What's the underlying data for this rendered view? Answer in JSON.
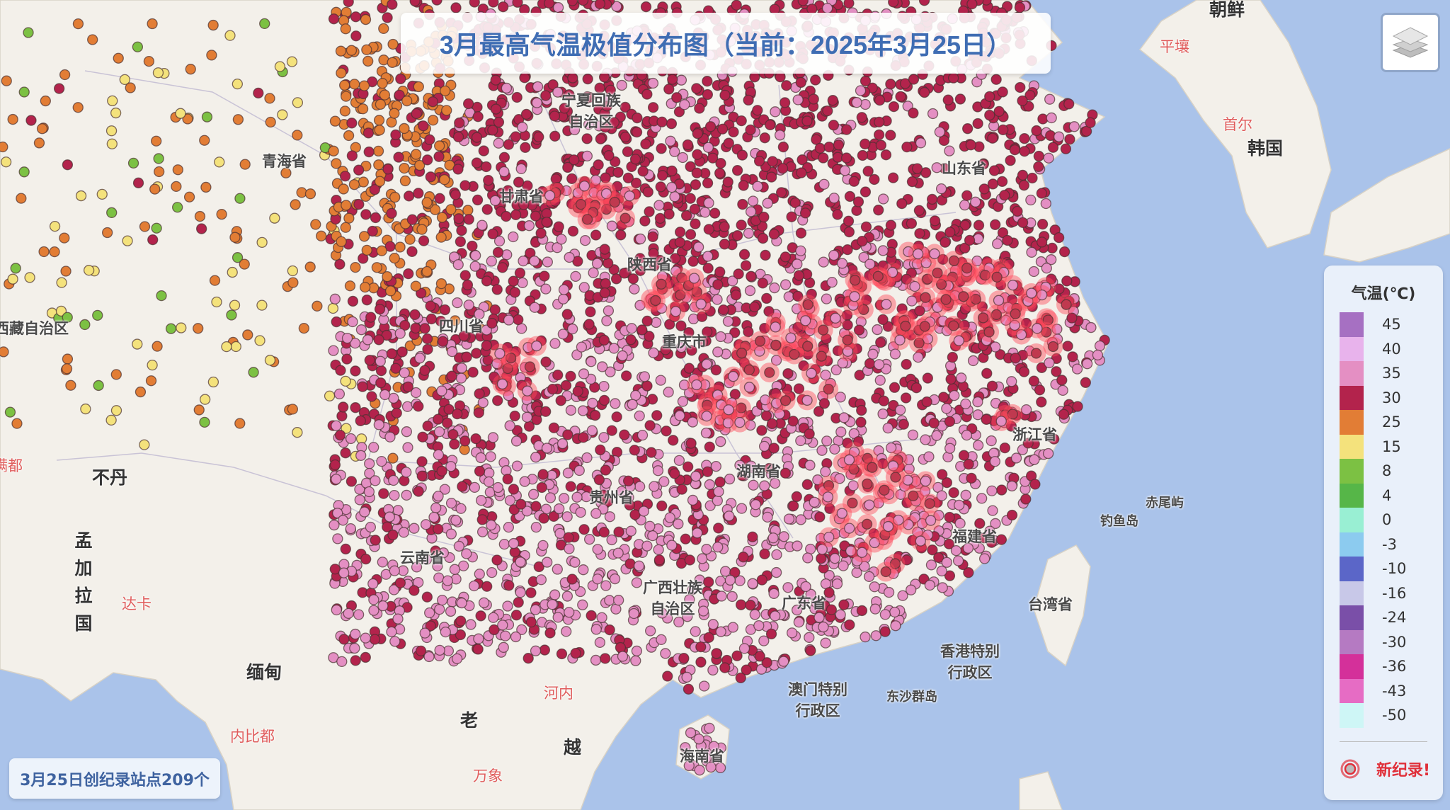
{
  "title": "3月最高气温极值分布图（当前：2025年3月25日）",
  "record_count_label": "3月25日创纪录站点209个",
  "layers_button": {
    "icon": "layers-icon"
  },
  "legend": {
    "title": "气温(℃)",
    "items": [
      {
        "value": "45",
        "color": "#a670c2"
      },
      {
        "value": "40",
        "color": "#e8b3ec"
      },
      {
        "value": "35",
        "color": "#e48fc3"
      },
      {
        "value": "30",
        "color": "#b3234c"
      },
      {
        "value": "25",
        "color": "#e27d35"
      },
      {
        "value": "15",
        "color": "#f4e27c"
      },
      {
        "value": "8",
        "color": "#7cc143"
      },
      {
        "value": "4",
        "color": "#56b648"
      },
      {
        "value": "0",
        "color": "#99efd3"
      },
      {
        "value": "-3",
        "color": "#8ccbef"
      },
      {
        "value": "-10",
        "color": "#5b66c8"
      },
      {
        "value": "-16",
        "color": "#c8c8e8"
      },
      {
        "value": "-24",
        "color": "#7a4fa8"
      },
      {
        "value": "-30",
        "color": "#b57ac2"
      },
      {
        "value": "-36",
        "color": "#d4309a"
      },
      {
        "value": "-43",
        "color": "#e66cc4"
      },
      {
        "value": "-50",
        "color": "#cef6f6"
      }
    ],
    "record_label": "新纪录!",
    "record_color": "#e0303a"
  },
  "map_labels": {
    "north_korea": "朝鲜",
    "pyongyang": "平壤",
    "seoul": "首尔",
    "south_korea": "韩国",
    "qinghai": "青海省",
    "ningxia": "宁夏回族自治区",
    "gansu": "甘肃省",
    "shandong": "山东省",
    "shaanxi": "陕西省",
    "sichuan": "四川省",
    "tibet": "西藏自治区",
    "chongqing": "重庆市",
    "zhejiang": "浙江省",
    "bhutan": "不丹",
    "bangladesh": "孟加拉国",
    "dhaka": "达卡",
    "hunan": "湖南省",
    "guizhou": "贵州省",
    "yunnan": "云南省",
    "fujian": "福建省",
    "guangxi": "广西壮族自治区",
    "guangdong": "广东省",
    "chiweiyu": "赤尾屿",
    "diaoyudao": "钓鱼岛",
    "taiwan": "台湾省",
    "hongkong": "香港特别行政区",
    "macau": "澳门特别行政区",
    "dongsha": "东沙群岛",
    "myanmar": "缅甸",
    "hanoi": "河内",
    "laos": "老",
    "vietnam": "越",
    "naypyidaw": "内比都",
    "vientiane": "万象",
    "hainan": "海南省",
    "manduo": "满都"
  }
}
